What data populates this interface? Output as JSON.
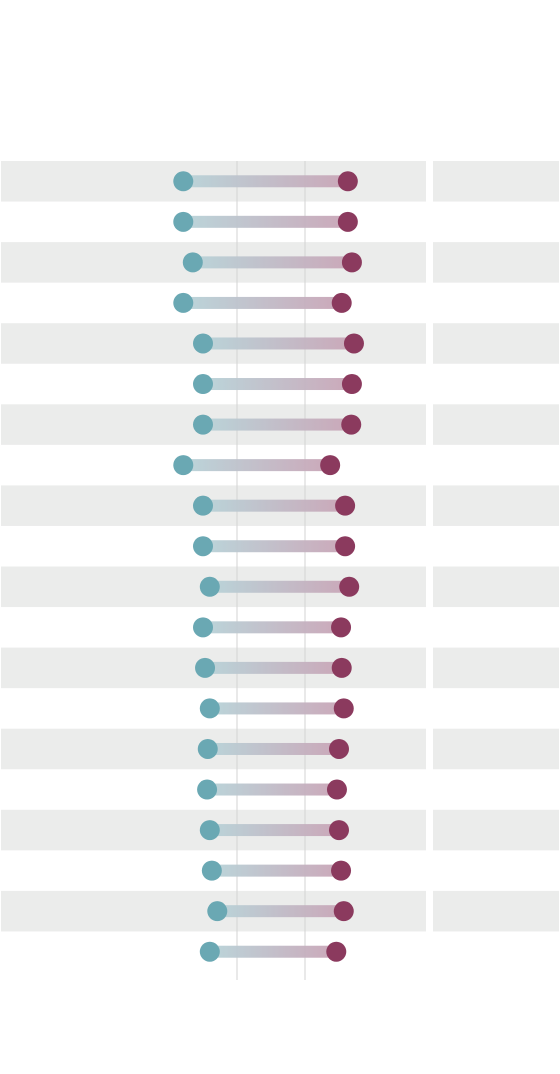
{
  "chart_data": {
    "type": "dumbbell",
    "categories": [
      null,
      null,
      null,
      null,
      null,
      null,
      null,
      null,
      null,
      null,
      null,
      null,
      null,
      null,
      null,
      null,
      null,
      null,
      null,
      null
    ],
    "series": [
      {
        "color": "#6aa8b3",
        "values": [
          1.21,
          1.21,
          1.35,
          1.21,
          1.5,
          1.5,
          1.5,
          1.21,
          1.5,
          1.5,
          1.6,
          1.5,
          1.53,
          1.6,
          1.57,
          1.56,
          1.6,
          1.63,
          1.71,
          1.6
        ]
      },
      {
        "color": "#8b3a5e",
        "values": [
          3.63,
          3.63,
          3.69,
          3.54,
          3.72,
          3.69,
          3.68,
          3.37,
          3.59,
          3.59,
          3.65,
          3.53,
          3.54,
          3.57,
          3.5,
          3.47,
          3.5,
          3.53,
          3.57,
          3.46
        ]
      }
    ],
    "xlim": [
      0,
      5
    ],
    "xticks": [
      2,
      3
    ],
    "grid": true
  }
}
